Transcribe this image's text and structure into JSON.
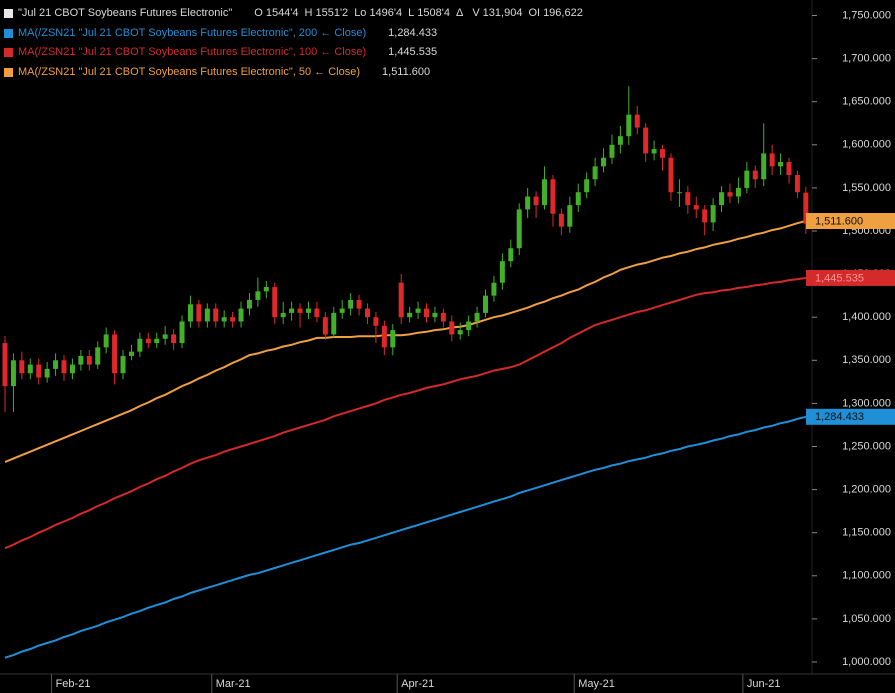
{
  "chart_data": {
    "type": "candlestick",
    "title": "\"Jul 21 CBOT Soybeans Futures Electronic\"",
    "quote": [
      {
        "label": "O",
        "value": "1544'4"
      },
      {
        "label": "H",
        "value": "1551'2"
      },
      {
        "label": "Lo",
        "value": "1496'4"
      },
      {
        "label": "L",
        "value": "1508'4"
      },
      {
        "label": "Δ"
      },
      {
        "label": "V",
        "value": "131,904"
      },
      {
        "label": "OI",
        "value": "196,622"
      }
    ],
    "categories": [
      null,
      null,
      null,
      null,
      null,
      null,
      "Feb-21",
      null,
      null,
      null,
      null,
      null,
      null,
      null,
      null,
      null,
      null,
      null,
      null,
      null,
      null,
      null,
      null,
      null,
      null,
      "Mar-21",
      null,
      null,
      null,
      null,
      null,
      null,
      null,
      null,
      null,
      null,
      null,
      null,
      null,
      null,
      null,
      null,
      null,
      null,
      null,
      null,
      null,
      "Apr-21",
      null,
      null,
      null,
      null,
      null,
      null,
      null,
      null,
      null,
      null,
      null,
      null,
      null,
      null,
      null,
      null,
      null,
      null,
      null,
      null,
      "May-21",
      null,
      null,
      null,
      null,
      null,
      null,
      null,
      null,
      null,
      null,
      null,
      null,
      null,
      null,
      null,
      null,
      null,
      null,
      null,
      "Jun-21",
      null,
      null,
      null,
      null,
      null,
      null,
      null
    ],
    "open": [
      1370,
      1320,
      1350,
      1335,
      1345,
      1330,
      1340,
      1350,
      1335,
      1345,
      1355,
      1345,
      1365,
      1380,
      1335,
      1355,
      1360,
      1375,
      1370,
      1375,
      1380,
      1370,
      1395,
      1415,
      1395,
      1410,
      1395,
      1400,
      1395,
      1410,
      1420,
      1430,
      1435,
      1400,
      1405,
      1410,
      1405,
      1410,
      1400,
      1380,
      1405,
      1410,
      1420,
      1410,
      1400,
      1390,
      1365,
      1440,
      1400,
      1405,
      1410,
      1400,
      1405,
      1395,
      1380,
      1385,
      1395,
      1405,
      1425,
      1440,
      1465,
      1480,
      1525,
      1540,
      1530,
      1560,
      1520,
      1505,
      1530,
      1545,
      1560,
      1575,
      1585,
      1600,
      1610,
      1635,
      1620,
      1590,
      1595,
      1585,
      1545,
      1545,
      1530,
      1525,
      1510,
      1530,
      1545,
      1540,
      1550,
      1570,
      1560,
      1590,
      1575,
      1580,
      1565,
      1544.5
    ],
    "high": [
      1378,
      1358,
      1360,
      1352,
      1352,
      1348,
      1358,
      1356,
      1352,
      1362,
      1362,
      1372,
      1388,
      1385,
      1362,
      1368,
      1382,
      1382,
      1382,
      1390,
      1386,
      1402,
      1425,
      1420,
      1416,
      1416,
      1408,
      1406,
      1418,
      1428,
      1446,
      1442,
      1440,
      1418,
      1418,
      1416,
      1418,
      1418,
      1406,
      1412,
      1420,
      1428,
      1426,
      1416,
      1406,
      1396,
      1392,
      1450,
      1412,
      1418,
      1416,
      1412,
      1410,
      1402,
      1394,
      1402,
      1412,
      1432,
      1448,
      1474,
      1490,
      1532,
      1550,
      1546,
      1575,
      1565,
      1526,
      1540,
      1555,
      1568,
      1585,
      1596,
      1612,
      1622,
      1668,
      1645,
      1625,
      1605,
      1600,
      1590,
      1560,
      1552,
      1540,
      1530,
      1538,
      1552,
      1555,
      1562,
      1580,
      1576,
      1625,
      1600,
      1590,
      1585,
      1570,
      1551.25
    ],
    "low": [
      1290,
      1290,
      1328,
      1328,
      1322,
      1324,
      1332,
      1326,
      1328,
      1338,
      1338,
      1340,
      1358,
      1322,
      1328,
      1350,
      1354,
      1364,
      1364,
      1368,
      1362,
      1364,
      1388,
      1388,
      1388,
      1388,
      1388,
      1388,
      1388,
      1402,
      1412,
      1422,
      1392,
      1392,
      1396,
      1388,
      1398,
      1394,
      1374,
      1376,
      1398,
      1402,
      1402,
      1392,
      1370,
      1356,
      1356,
      1392,
      1394,
      1398,
      1394,
      1394,
      1388,
      1372,
      1374,
      1378,
      1388,
      1400,
      1418,
      1432,
      1458,
      1472,
      1515,
      1515,
      1525,
      1505,
      1495,
      1498,
      1522,
      1538,
      1552,
      1568,
      1578,
      1590,
      1600,
      1612,
      1580,
      1582,
      1570,
      1535,
      1528,
      1520,
      1515,
      1495,
      1500,
      1522,
      1532,
      1532,
      1544,
      1550,
      1552,
      1565,
      1565,
      1555,
      1538,
      1496.5
    ],
    "close": [
      1320,
      1350,
      1335,
      1345,
      1330,
      1340,
      1350,
      1335,
      1345,
      1355,
      1345,
      1365,
      1380,
      1335,
      1355,
      1360,
      1375,
      1370,
      1375,
      1380,
      1370,
      1395,
      1415,
      1395,
      1410,
      1395,
      1400,
      1395,
      1410,
      1420,
      1430,
      1435,
      1400,
      1405,
      1410,
      1405,
      1410,
      1400,
      1380,
      1405,
      1410,
      1420,
      1410,
      1400,
      1390,
      1365,
      1385,
      1400,
      1405,
      1410,
      1400,
      1405,
      1395,
      1380,
      1385,
      1395,
      1405,
      1425,
      1440,
      1465,
      1480,
      1525,
      1540,
      1530,
      1560,
      1520,
      1505,
      1530,
      1545,
      1560,
      1575,
      1585,
      1600,
      1610,
      1635,
      1620,
      1590,
      1595,
      1585,
      1545,
      1545,
      1530,
      1525,
      1510,
      1530,
      1545,
      1540,
      1550,
      1570,
      1560,
      1590,
      1575,
      1580,
      1565,
      1545,
      1508.5
    ],
    "up_color": "#43b02a",
    "down_color": "#e0282a",
    "series": [
      {
        "name": "MA(/ZSN21 \"Jul 21 CBOT Soybeans Futures Electronic\", 200 ← Close)",
        "color": "#1f8fd8",
        "value_label": "1,284.433",
        "values": [
          1005,
          1008,
          1012,
          1015,
          1019,
          1022,
          1025,
          1029,
          1032,
          1036,
          1039,
          1042,
          1046,
          1049,
          1052,
          1056,
          1059,
          1063,
          1066,
          1069,
          1073,
          1076,
          1080,
          1083,
          1086,
          1089,
          1092,
          1095,
          1098,
          1101,
          1103,
          1106,
          1109,
          1112,
          1115,
          1118,
          1121,
          1124,
          1127,
          1130,
          1133,
          1136,
          1138,
          1141,
          1144,
          1147,
          1150,
          1153,
          1156,
          1159,
          1162,
          1165,
          1168,
          1171,
          1174,
          1177,
          1180,
          1183,
          1186,
          1189,
          1192,
          1196,
          1199,
          1202,
          1205,
          1208,
          1211,
          1214,
          1217,
          1220,
          1223,
          1225,
          1228,
          1230,
          1233,
          1235,
          1237,
          1240,
          1242,
          1245,
          1247,
          1250,
          1252,
          1254,
          1257,
          1259,
          1262,
          1264,
          1267,
          1269,
          1272,
          1274,
          1277,
          1279,
          1282,
          1284.433
        ]
      },
      {
        "name": "MA(/ZSN21 \"Jul 21 CBOT Soybeans Futures Electronic\", 100 ← Close)",
        "color": "#d42a2a",
        "value_label": "1,445.535",
        "values": [
          1132,
          1136,
          1141,
          1145,
          1150,
          1154,
          1159,
          1163,
          1167,
          1172,
          1176,
          1181,
          1185,
          1190,
          1194,
          1198,
          1203,
          1207,
          1212,
          1216,
          1221,
          1225,
          1230,
          1234,
          1237,
          1240,
          1244,
          1247,
          1250,
          1253,
          1256,
          1259,
          1262,
          1266,
          1269,
          1272,
          1275,
          1278,
          1281,
          1285,
          1288,
          1291,
          1294,
          1297,
          1300,
          1304,
          1307,
          1310,
          1312,
          1315,
          1318,
          1320,
          1322,
          1325,
          1328,
          1330,
          1332,
          1335,
          1338,
          1340,
          1342,
          1345,
          1350,
          1355,
          1360,
          1365,
          1370,
          1376,
          1381,
          1386,
          1391,
          1394,
          1397,
          1400,
          1403,
          1406,
          1408,
          1411,
          1414,
          1417,
          1420,
          1423,
          1426,
          1428,
          1429,
          1431,
          1432,
          1434,
          1435,
          1437,
          1438,
          1440,
          1441,
          1443,
          1444,
          1445.535
        ]
      },
      {
        "name": "MA(/ZSN21 \"Jul 21 CBOT Soybeans Futures Electronic\", 50 ← Close)",
        "color": "#f0a040",
        "value_label": "1,511.600",
        "values": [
          1232,
          1236,
          1240,
          1244,
          1248,
          1252,
          1256,
          1260,
          1264,
          1268,
          1272,
          1276,
          1280,
          1284,
          1288,
          1292,
          1297,
          1301,
          1306,
          1310,
          1315,
          1320,
          1324,
          1329,
          1333,
          1338,
          1342,
          1347,
          1351,
          1356,
          1358,
          1361,
          1363,
          1366,
          1368,
          1371,
          1373,
          1376,
          1376,
          1377,
          1377,
          1377,
          1378,
          1378,
          1378,
          1379,
          1379,
          1379,
          1380,
          1382,
          1383,
          1385,
          1386,
          1388,
          1389,
          1391,
          1394,
          1397,
          1400,
          1402,
          1405,
          1408,
          1411,
          1415,
          1418,
          1422,
          1425,
          1429,
          1432,
          1437,
          1441,
          1446,
          1450,
          1455,
          1458,
          1461,
          1463,
          1466,
          1469,
          1471,
          1474,
          1476,
          1479,
          1481,
          1484,
          1486,
          1488,
          1491,
          1493,
          1496,
          1498,
          1501,
          1503,
          1506,
          1509,
          1511.6
        ]
      }
    ],
    "ylim": [
      964,
      1768
    ],
    "yticks": [
      {
        "value": 1000,
        "label": "1,000.000"
      },
      {
        "value": 1050,
        "label": "1,050.000"
      },
      {
        "value": 1100,
        "label": "1,100.000"
      },
      {
        "value": 1150,
        "label": "1,150.000"
      },
      {
        "value": 1200,
        "label": "1,200.000"
      },
      {
        "value": 1250,
        "label": "1,250.000"
      },
      {
        "value": 1300,
        "label": "1,300.000"
      },
      {
        "value": 1350,
        "label": "1,350.000"
      },
      {
        "value": 1400,
        "label": "1,400.000"
      },
      {
        "value": 1450,
        "label": "1,450.000"
      },
      {
        "value": 1500,
        "label": "1,500.000"
      },
      {
        "value": 1550,
        "label": "1,550.000"
      },
      {
        "value": 1600,
        "label": "1,600.000"
      },
      {
        "value": 1650,
        "label": "1,650.000"
      },
      {
        "value": 1700,
        "label": "1,700.000"
      },
      {
        "value": 1750,
        "label": "1,750.000"
      }
    ]
  }
}
